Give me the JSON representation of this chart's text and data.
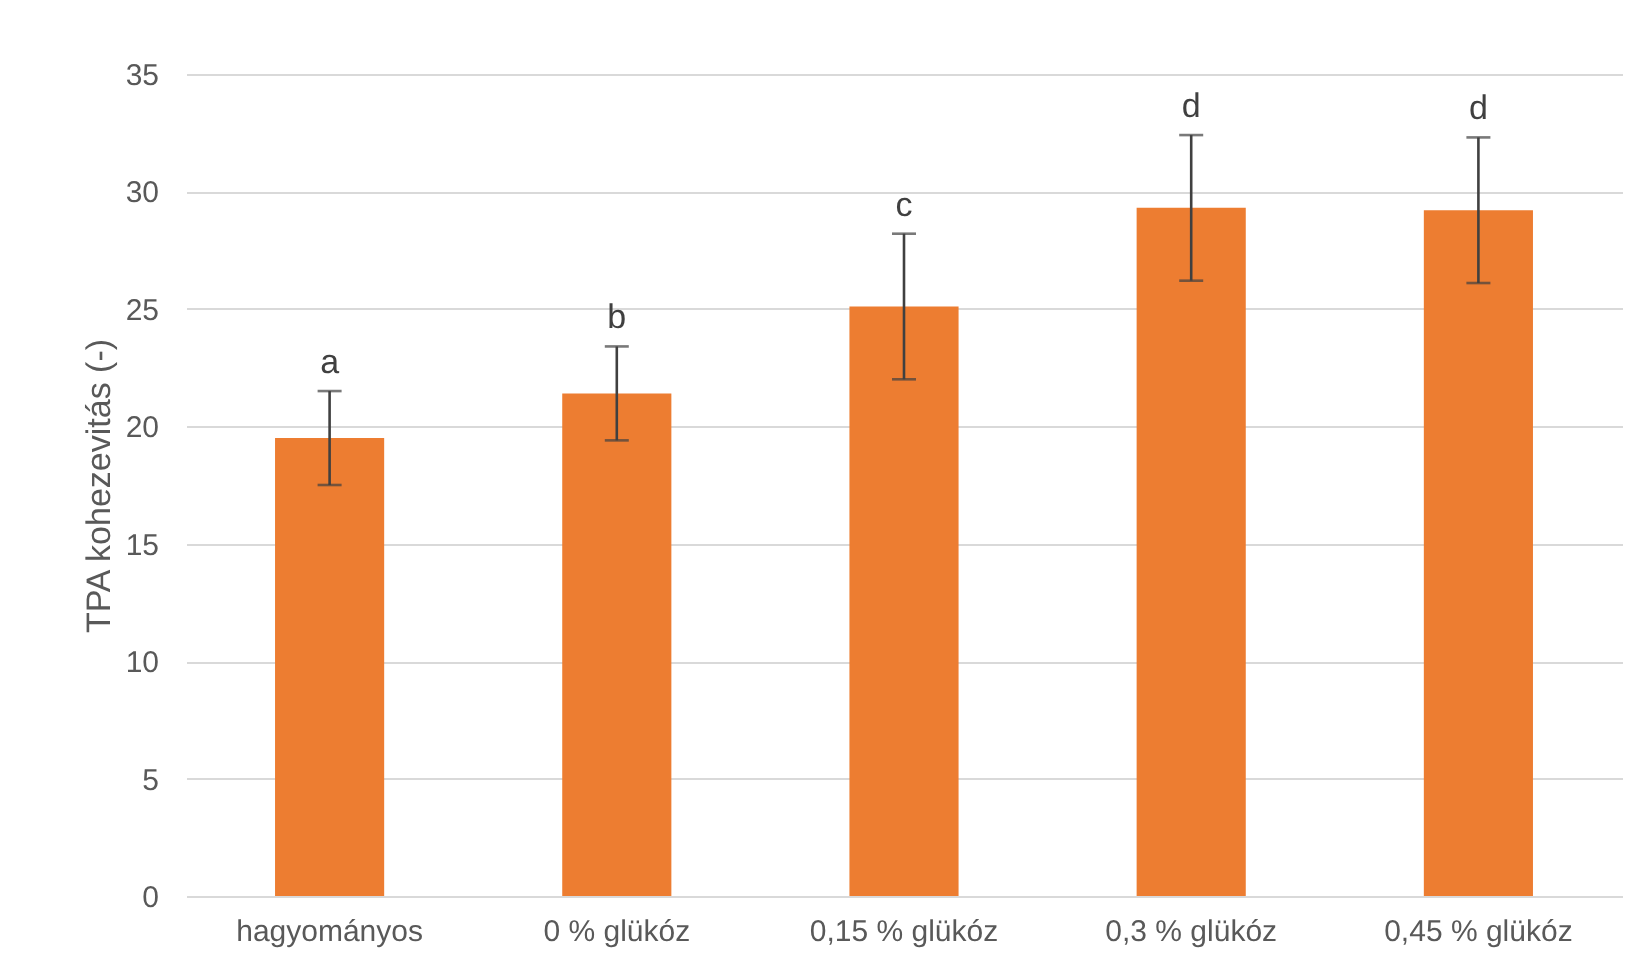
{
  "chart_data": {
    "type": "bar",
    "ylabel": "TPA kohezevitás (-)",
    "categories": [
      "hagyományos",
      "0 % glükóz",
      "0,15 % glükóz",
      "0,3 % glükóz",
      "0,45 % glükóz"
    ],
    "values": [
      19.5,
      21.4,
      25.1,
      29.3,
      29.2
    ],
    "errors": [
      2.0,
      2.0,
      3.1,
      3.1,
      3.1
    ],
    "color": "#ed7d31",
    "ylim": [
      0,
      35
    ],
    "yticks": [
      0,
      5,
      10,
      15,
      20,
      25,
      30,
      35
    ],
    "grid": "y",
    "annotations": [
      "a",
      "b",
      "c",
      "d",
      "d"
    ]
  }
}
